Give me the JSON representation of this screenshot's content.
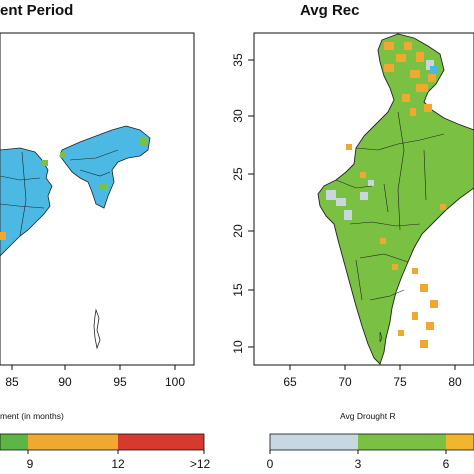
{
  "left_panel": {
    "title": "ent Period",
    "x_ticks": [
      "85",
      "90",
      "95",
      "100"
    ],
    "colorbar": {
      "caption": "ment (in months)",
      "labels": [
        "9",
        "12",
        ">12"
      ],
      "colors": [
        "#5cb545",
        "#f0a830",
        "#d63a2e"
      ]
    }
  },
  "right_panel": {
    "title": "Avg Rec",
    "x_ticks": [
      "65",
      "70",
      "75",
      "80"
    ],
    "y_ticks": [
      "35",
      "30",
      "25",
      "20",
      "15",
      "10"
    ],
    "colorbar": {
      "caption": "Avg Drought R",
      "labels": [
        "0",
        "3",
        "6"
      ],
      "colors": [
        "#c8d8e2",
        "#7ac143",
        "#f2b62e"
      ]
    }
  },
  "map_colors": {
    "land_blue": "#4cb9e4",
    "land_green": "#79c043",
    "orange": "#f0a830",
    "light_blue_grey": "#c9d6de",
    "boundary": "#222222"
  }
}
